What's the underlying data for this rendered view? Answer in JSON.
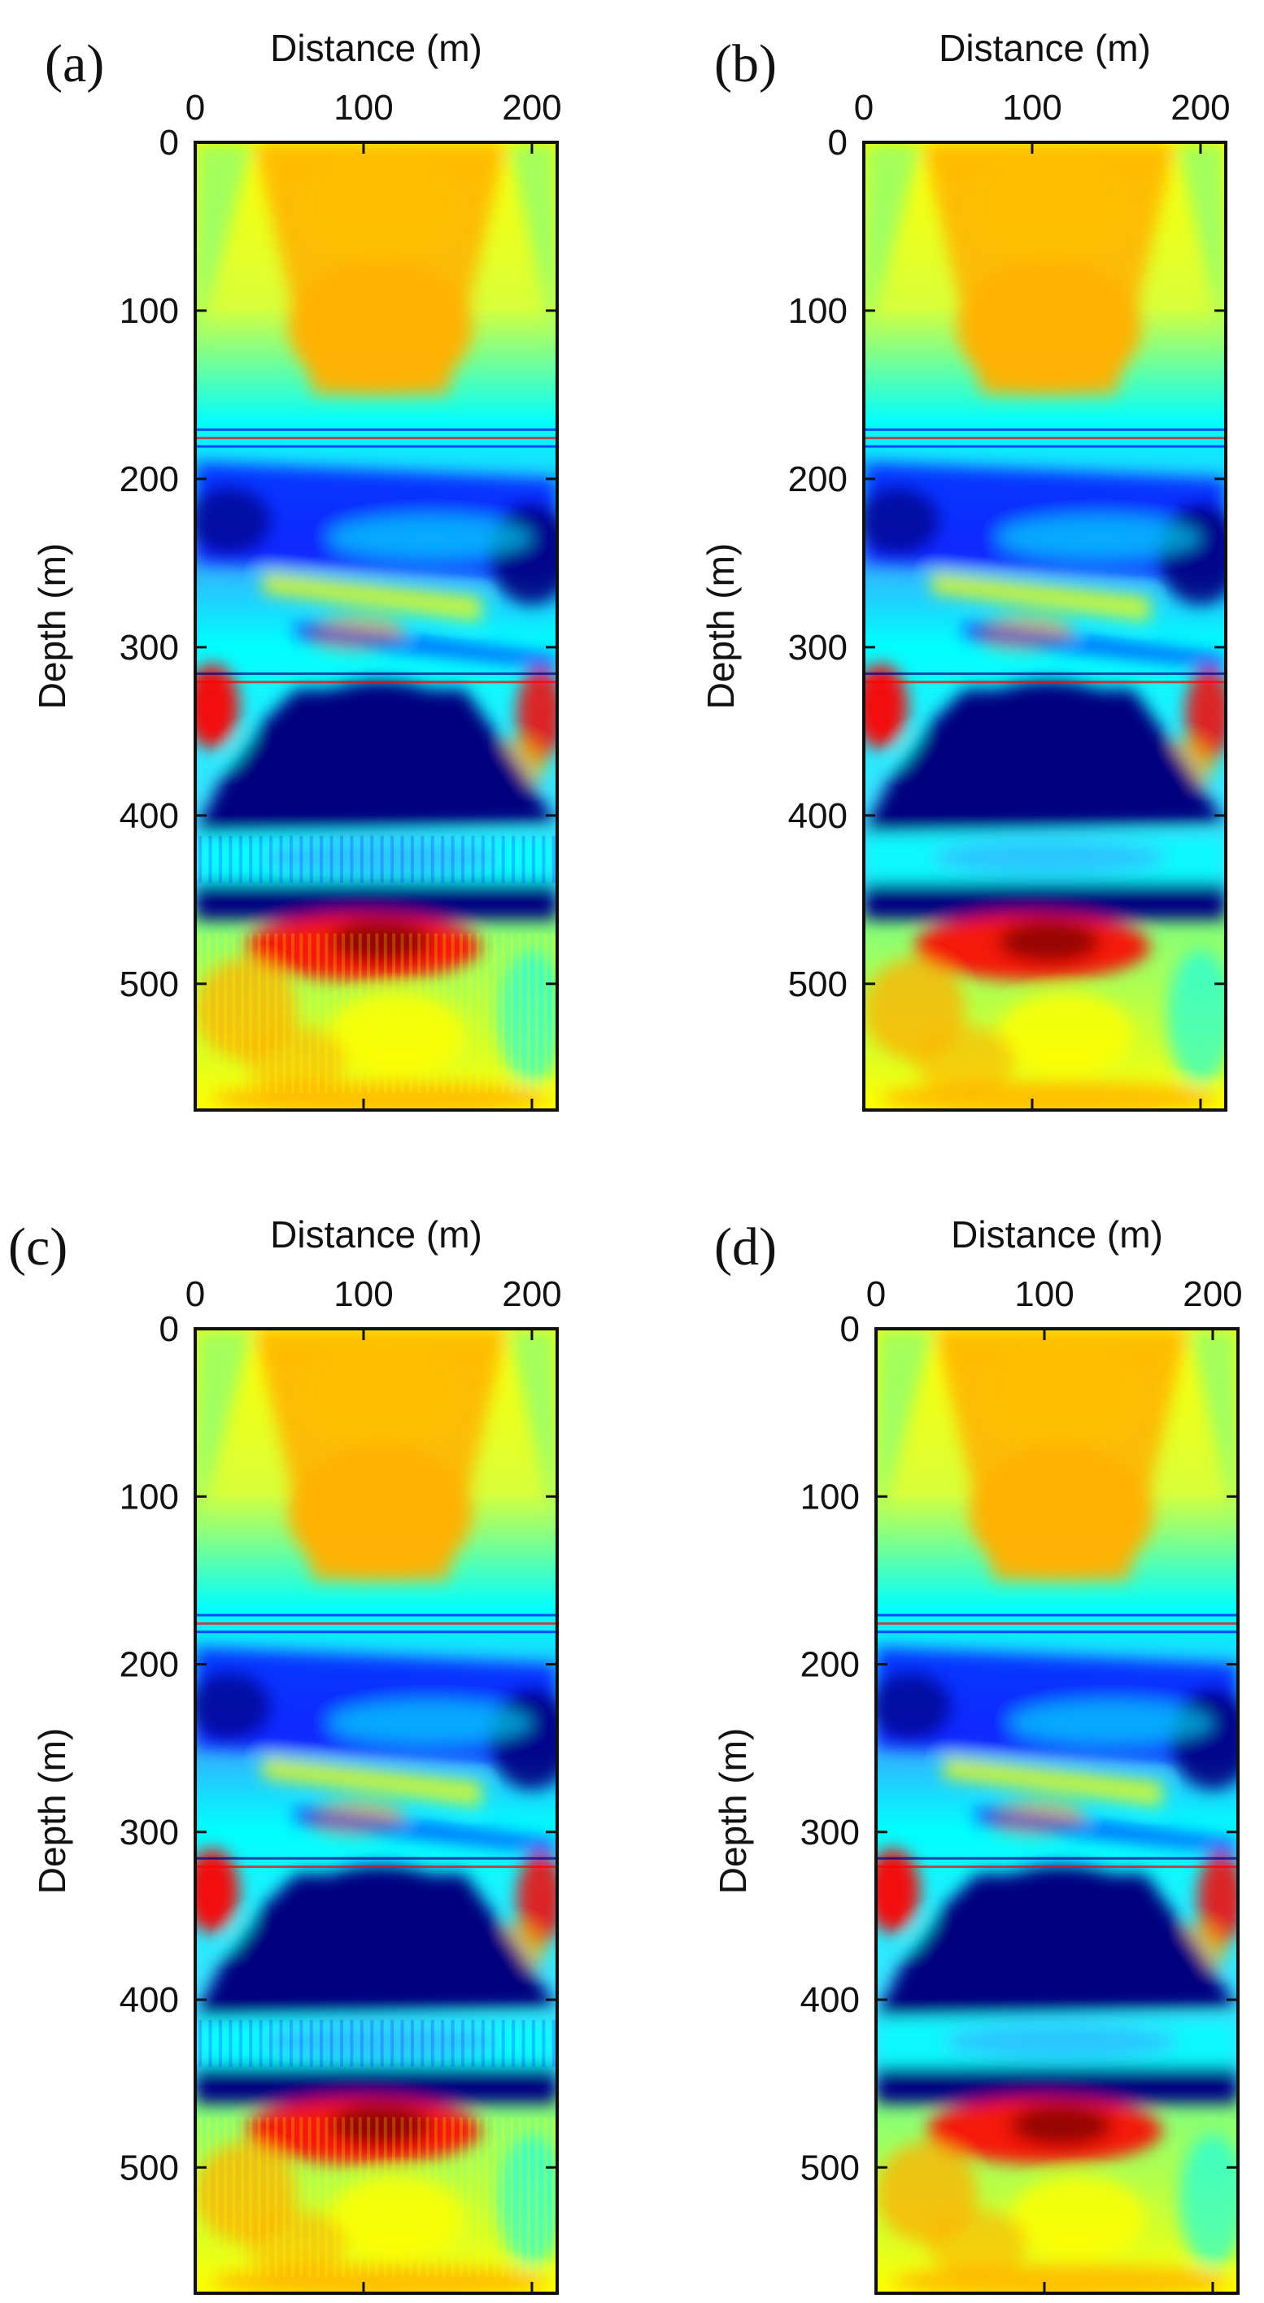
{
  "figure": {
    "panels": [
      {
        "id": "a",
        "label": "(a)"
      },
      {
        "id": "b",
        "label": "(b)"
      },
      {
        "id": "c",
        "label": "(c)"
      },
      {
        "id": "d",
        "label": "(d)"
      }
    ]
  },
  "colormap": [
    "#00007f",
    "#0000ff",
    "#00ffff",
    "#ffff00",
    "#ff0000",
    "#7f0000"
  ],
  "chart_data": [
    {
      "panel": "(a)",
      "type": "heatmap",
      "colormap": "jet",
      "xlabel": "Distance (m)",
      "ylabel": "Depth (m)",
      "xlim": [
        0,
        215
      ],
      "ylim": [
        0,
        575
      ],
      "xticks": [
        0,
        100,
        200
      ],
      "yticks": [
        0,
        100,
        200,
        300,
        400,
        500
      ],
      "description": "Velocity model section; noisy striped features below 460 m",
      "layers": [
        {
          "depth_range": [
            0,
            165
          ],
          "pattern": "yellow-orange wedge centered near 110 m"
        },
        {
          "depth_range": [
            165,
            180
          ],
          "pattern": "thin horizontal banded layer"
        },
        {
          "depth_range": [
            190,
            310
          ],
          "pattern": "dipping blue and yellow stripes"
        },
        {
          "depth_range": [
            315,
            320
          ],
          "pattern": "thin horizontal line"
        },
        {
          "depth_range": [
            325,
            410
          ],
          "pattern": "dark blue body with red edges"
        },
        {
          "depth_range": [
            410,
            460
          ],
          "pattern": "cyan band over dark blue layer"
        },
        {
          "depth_range": [
            460,
            575
          ],
          "pattern": "red-yellow zone with vertical striping"
        }
      ]
    },
    {
      "panel": "(b)",
      "type": "heatmap",
      "colormap": "jet",
      "xlabel": "Distance (m)",
      "ylabel": "Depth (m)",
      "xlim": [
        0,
        215
      ],
      "ylim": [
        0,
        575
      ],
      "xticks": [
        0,
        100,
        200
      ],
      "yticks": [
        0,
        100,
        200,
        300,
        400,
        500
      ],
      "description": "Velocity model section; smooth, few artifacts"
    },
    {
      "panel": "(c)",
      "type": "heatmap",
      "colormap": "jet",
      "xlabel": "Distance (m)",
      "ylabel": "Depth (m)",
      "xlim": [
        0,
        215
      ],
      "ylim": [
        0,
        575
      ],
      "xticks": [
        0,
        100,
        200
      ],
      "yticks": [
        0,
        100,
        200,
        300,
        400,
        500
      ],
      "description": "Velocity model section; vertical striping below 460 m"
    },
    {
      "panel": "(d)",
      "type": "heatmap",
      "colormap": "jet",
      "xlabel": "Distance (m)",
      "ylabel": "Depth (m)",
      "xlim": [
        0,
        215
      ],
      "ylim": [
        0,
        575
      ],
      "xticks": [
        0,
        100,
        200
      ],
      "yticks": [
        0,
        100,
        200,
        300,
        400,
        500
      ],
      "description": "Velocity model section; sharp dipping layers, smooth lower zone"
    }
  ]
}
